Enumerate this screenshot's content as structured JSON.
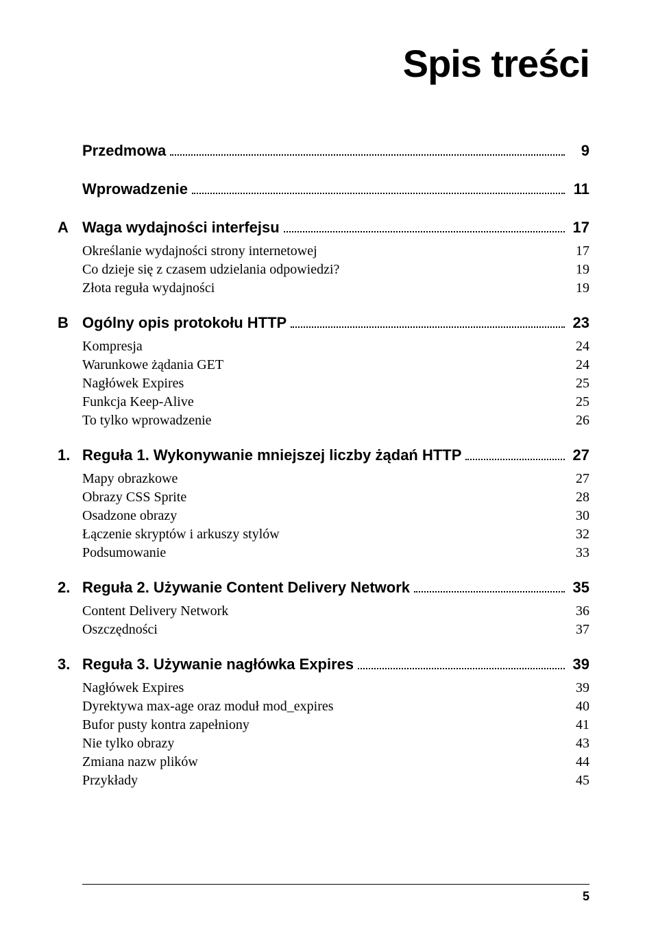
{
  "title": "Spis treści",
  "page_number": "5",
  "entries": [
    {
      "level": "front",
      "prefix": "",
      "label": "Przedmowa",
      "page": "9",
      "leader": true
    },
    {
      "level": "front",
      "prefix": "",
      "label": "Wprowadzenie",
      "page": "11",
      "leader": true
    },
    {
      "level": "chapter",
      "prefix": "A",
      "label": "Waga wydajności interfejsu",
      "page": "17",
      "leader": true
    },
    {
      "level": "sub",
      "prefix": "",
      "label": "Określanie wydajności strony internetowej",
      "page": "17",
      "leader": false
    },
    {
      "level": "sub",
      "prefix": "",
      "label": "Co dzieje się z czasem udzielania odpowiedzi?",
      "page": "19",
      "leader": false
    },
    {
      "level": "sub",
      "prefix": "",
      "label": "Złota reguła wydajności",
      "page": "19",
      "leader": false
    },
    {
      "level": "chapter",
      "prefix": "B",
      "label": "Ogólny opis protokołu HTTP",
      "page": "23",
      "leader": true
    },
    {
      "level": "sub",
      "prefix": "",
      "label": "Kompresja",
      "page": "24",
      "leader": false
    },
    {
      "level": "sub",
      "prefix": "",
      "label": "Warunkowe żądania GET",
      "page": "24",
      "leader": false
    },
    {
      "level": "sub",
      "prefix": "",
      "label": "Nagłówek Expires",
      "page": "25",
      "leader": false
    },
    {
      "level": "sub",
      "prefix": "",
      "label": "Funkcja Keep-Alive",
      "page": "25",
      "leader": false
    },
    {
      "level": "sub",
      "prefix": "",
      "label": "To tylko wprowadzenie",
      "page": "26",
      "leader": false
    },
    {
      "level": "chapter",
      "prefix": "1.",
      "label": "Reguła 1. Wykonywanie mniejszej liczby żądań HTTP",
      "page": "27",
      "leader": true
    },
    {
      "level": "sub",
      "prefix": "",
      "label": "Mapy obrazkowe",
      "page": "27",
      "leader": false
    },
    {
      "level": "sub",
      "prefix": "",
      "label": "Obrazy CSS Sprite",
      "page": "28",
      "leader": false
    },
    {
      "level": "sub",
      "prefix": "",
      "label": "Osadzone obrazy",
      "page": "30",
      "leader": false
    },
    {
      "level": "sub",
      "prefix": "",
      "label": "Łączenie skryptów i arkuszy stylów",
      "page": "32",
      "leader": false
    },
    {
      "level": "sub",
      "prefix": "",
      "label": "Podsumowanie",
      "page": "33",
      "leader": false
    },
    {
      "level": "chapter",
      "prefix": "2.",
      "label": "Reguła 2. Używanie Content Delivery Network",
      "page": "35",
      "leader": true
    },
    {
      "level": "sub",
      "prefix": "",
      "label": "Content Delivery Network",
      "page": "36",
      "leader": false
    },
    {
      "level": "sub",
      "prefix": "",
      "label": "Oszczędności",
      "page": "37",
      "leader": false
    },
    {
      "level": "chapter",
      "prefix": "3.",
      "label": "Reguła 3. Używanie nagłówka Expires",
      "page": "39",
      "leader": true
    },
    {
      "level": "sub",
      "prefix": "",
      "label": "Nagłówek Expires",
      "page": "39",
      "leader": false
    },
    {
      "level": "sub",
      "prefix": "",
      "label": "Dyrektywa max-age oraz moduł mod_expires",
      "page": "40",
      "leader": false
    },
    {
      "level": "sub",
      "prefix": "",
      "label": "Bufor pusty kontra zapełniony",
      "page": "41",
      "leader": false
    },
    {
      "level": "sub",
      "prefix": "",
      "label": "Nie tylko obrazy",
      "page": "43",
      "leader": false
    },
    {
      "level": "sub",
      "prefix": "",
      "label": "Zmiana nazw plików",
      "page": "44",
      "leader": false
    },
    {
      "level": "sub",
      "prefix": "",
      "label": "Przykłady",
      "page": "45",
      "leader": false
    }
  ]
}
